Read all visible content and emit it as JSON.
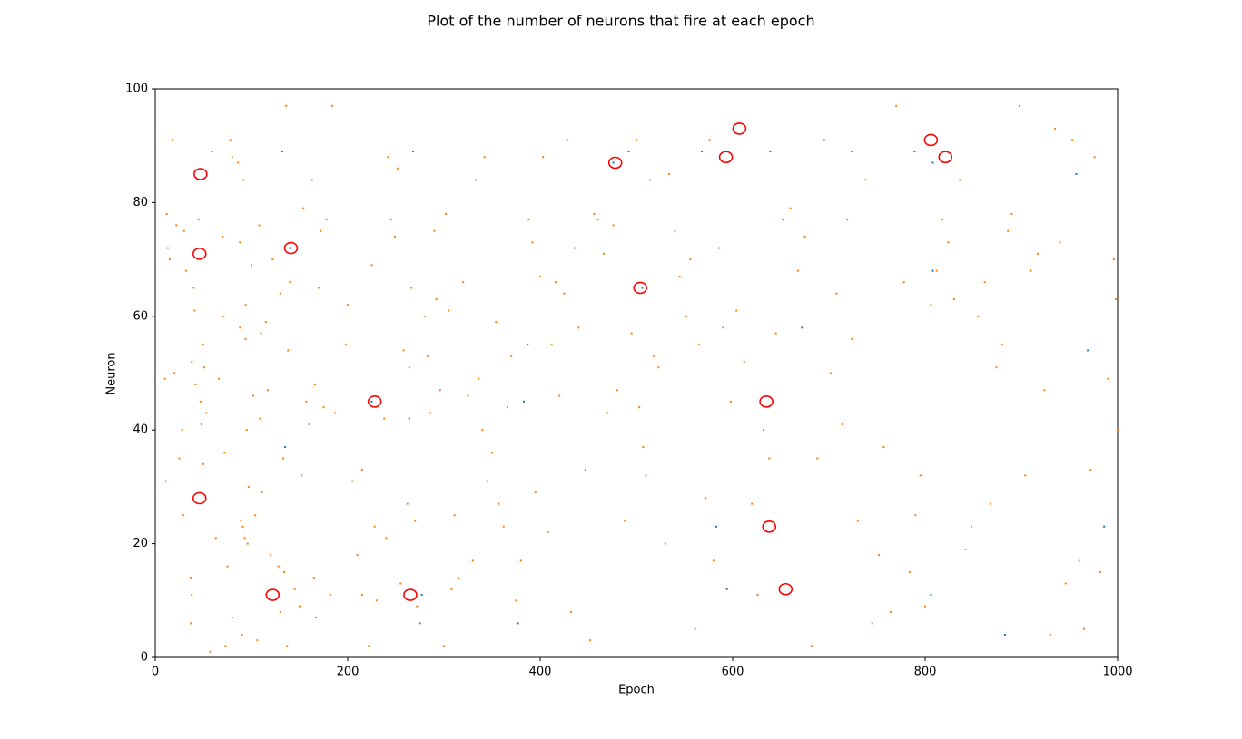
{
  "chart_data": {
    "type": "scatter",
    "title": "Plot of the number of neurons that fire at each epoch",
    "xlabel": "Epoch",
    "ylabel": "Neuron",
    "xlim": [
      0,
      1000
    ],
    "ylim": [
      0,
      100
    ],
    "xticks": [
      0,
      200,
      400,
      600,
      800,
      1000
    ],
    "yticks": [
      0,
      20,
      40,
      60,
      80,
      100
    ],
    "series": [
      {
        "color": "#ff7f0e",
        "marker": "square",
        "x": [
          10,
          11,
          12,
          13,
          15,
          18,
          20,
          22,
          25,
          28,
          29,
          30,
          32,
          37,
          37,
          38,
          38,
          40,
          41,
          42,
          45,
          47,
          48,
          50,
          50,
          51,
          53,
          57,
          63,
          66,
          70,
          71,
          72,
          73,
          75,
          78,
          80,
          80,
          86,
          88,
          88,
          89,
          90,
          91,
          92,
          93,
          94,
          94,
          95,
          96,
          97,
          100,
          102,
          104,
          106,
          108,
          109,
          110,
          111,
          115,
          117,
          120,
          122,
          128,
          130,
          130,
          133,
          134,
          136,
          137,
          138,
          140,
          145,
          150,
          152,
          154,
          157,
          160,
          163,
          165,
          166,
          167,
          170,
          172,
          175,
          178,
          182,
          184,
          187,
          198,
          200,
          205,
          210,
          215,
          215,
          222,
          225,
          228,
          230,
          238,
          240,
          242,
          245,
          249,
          252,
          255,
          258,
          262,
          264,
          266,
          270,
          272,
          280,
          283,
          286,
          290,
          292,
          296,
          300,
          302,
          305,
          308,
          311,
          315,
          320,
          325,
          330,
          333,
          336,
          340,
          342,
          345,
          350,
          354,
          357,
          362,
          366,
          370,
          375,
          380,
          388,
          392,
          395,
          400,
          403,
          408,
          412,
          416,
          420,
          425,
          428,
          432,
          436,
          440,
          447,
          452,
          456,
          460,
          466,
          470,
          476,
          480,
          488,
          495,
          500,
          503,
          507,
          510,
          514,
          518,
          523,
          530,
          534,
          540,
          545,
          552,
          556,
          561,
          565,
          572,
          576,
          580,
          586,
          590,
          598,
          604,
          612,
          620,
          626,
          632,
          638,
          645,
          652,
          660,
          668,
          675,
          682,
          688,
          695,
          702,
          708,
          714,
          719,
          724,
          730,
          738,
          745,
          752,
          757,
          764,
          770,
          778,
          784,
          790,
          795,
          800,
          806,
          812,
          818,
          824,
          830,
          836,
          842,
          848,
          855,
          862,
          868,
          874,
          880,
          886,
          890,
          898,
          904,
          910,
          917,
          924,
          930,
          935,
          940,
          946,
          953,
          960,
          965,
          972,
          976,
          982,
          990,
          996,
          998,
          1000
        ],
        "y": [
          49,
          31,
          78,
          72,
          70,
          91,
          50,
          76,
          35,
          40,
          25,
          75,
          68,
          14,
          6,
          11,
          52,
          65,
          61,
          48,
          77,
          45,
          41,
          55,
          34,
          51,
          43,
          1,
          21,
          49,
          74,
          60,
          36,
          2,
          16,
          91,
          88,
          7,
          87,
          73,
          58,
          24,
          4,
          23,
          84,
          21,
          62,
          56,
          40,
          20,
          30,
          69,
          46,
          25,
          3,
          76,
          42,
          57,
          29,
          59,
          47,
          18,
          70,
          16,
          64,
          8,
          35,
          15,
          97,
          2,
          54,
          66,
          12,
          9,
          32,
          79,
          45,
          41,
          84,
          14,
          48,
          7,
          65,
          75,
          44,
          77,
          11,
          97,
          43,
          55,
          62,
          31,
          18,
          33,
          11,
          2,
          69,
          23,
          10,
          42,
          21,
          88,
          77,
          74,
          86,
          13,
          54,
          27,
          51,
          65,
          24,
          9,
          60,
          53,
          43,
          75,
          63,
          47,
          2,
          78,
          61,
          12,
          25,
          14,
          66,
          46,
          17,
          84,
          49,
          40,
          88,
          31,
          36,
          59,
          27,
          23,
          44,
          53,
          10,
          17,
          77,
          73,
          29,
          67,
          88,
          22,
          55,
          66,
          46,
          64,
          91,
          8,
          72,
          58,
          33,
          3,
          78,
          77,
          71,
          43,
          76,
          47,
          24,
          57,
          91,
          44,
          37,
          32,
          84,
          53,
          51,
          20,
          85,
          75,
          67,
          60,
          70,
          5,
          55,
          28,
          91,
          17,
          72,
          58,
          45,
          61,
          52,
          27,
          11,
          40,
          35,
          57,
          77,
          79,
          68,
          74,
          2,
          35,
          91,
          50,
          64,
          41,
          77,
          56,
          24,
          84,
          6,
          18,
          37,
          8,
          97,
          66,
          15,
          25,
          32,
          9,
          62,
          68,
          77,
          73,
          63,
          84,
          19,
          23,
          60,
          66,
          27,
          51,
          55,
          75,
          78,
          97,
          32,
          68,
          71,
          47,
          4,
          93,
          73,
          13,
          91,
          17,
          5,
          33,
          88,
          15,
          49,
          70,
          63,
          40
        ]
      },
      {
        "color": "#1f77b4",
        "marker": "square",
        "x": [
          59,
          132,
          268,
          492,
          568,
          639,
          724,
          789,
          808,
          957,
          808,
          672,
          387,
          969,
          383,
          264,
          277,
          275,
          377,
          583,
          986,
          594,
          806,
          883,
          140,
          135,
          225,
          476,
          506
        ],
        "y": [
          89,
          89,
          89,
          89,
          89,
          89,
          89,
          89,
          87,
          85,
          68,
          58,
          55,
          54,
          45,
          42,
          11,
          6,
          6,
          23,
          23,
          12,
          11,
          4,
          72,
          37,
          45,
          87,
          65
        ]
      },
      {
        "color": "red",
        "marker": "ring",
        "x": [
          47,
          46,
          141,
          46,
          122,
          228,
          265,
          478,
          504,
          593,
          607,
          806,
          821,
          635,
          638,
          655
        ],
        "y": [
          85,
          71,
          72,
          28,
          11,
          45,
          11,
          87,
          65,
          88,
          93,
          91,
          88,
          45,
          23,
          12
        ]
      }
    ]
  }
}
